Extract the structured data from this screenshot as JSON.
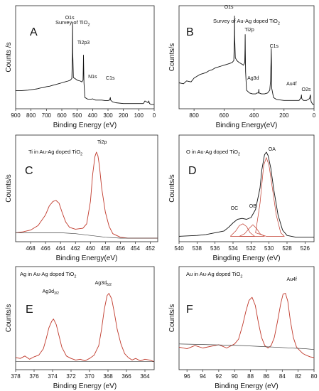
{
  "chart_data": [
    {
      "panel": "A",
      "type": "line",
      "inset_label": "Survey of  TiO",
      "inset_sub": "2",
      "xlabel": "Binding Energy (eV)",
      "ylabel": "Counts /s",
      "xlim": [
        900,
        0
      ],
      "ticks": [
        "900",
        "800",
        "700",
        "600",
        "500",
        "400",
        "300",
        "200",
        "100",
        "0"
      ],
      "annotations": [
        {
          "text": "O1s",
          "x": 530
        },
        {
          "text": "Ti2p3",
          "x": 459
        },
        {
          "text": "N1s",
          "x": 400
        },
        {
          "text": "C1s",
          "x": 285
        }
      ],
      "series": [
        {
          "color": "#111111",
          "x": [
            900,
            860,
            820,
            780,
            760,
            740,
            720,
            700,
            680,
            660,
            640,
            620,
            600,
            580,
            560,
            545,
            535,
            531,
            530,
            529,
            525,
            515,
            500,
            480,
            470,
            462,
            460,
            459,
            458,
            456,
            450,
            430,
            410,
            400,
            395,
            380,
            360,
            340,
            320,
            300,
            290,
            285,
            283,
            270,
            250,
            200,
            150,
            100,
            70,
            60,
            50,
            40,
            35,
            30,
            20,
            10,
            0
          ],
          "y": [
            0.21,
            0.21,
            0.215,
            0.225,
            0.23,
            0.24,
            0.245,
            0.255,
            0.26,
            0.27,
            0.28,
            0.29,
            0.3,
            0.31,
            0.32,
            0.33,
            0.35,
            0.6,
            1.0,
            0.65,
            0.36,
            0.35,
            0.33,
            0.32,
            0.31,
            0.33,
            0.5,
            0.62,
            0.48,
            0.3,
            0.13,
            0.11,
            0.11,
            0.115,
            0.11,
            0.1,
            0.1,
            0.1,
            0.095,
            0.095,
            0.1,
            0.13,
            0.1,
            0.08,
            0.07,
            0.06,
            0.06,
            0.06,
            0.06,
            0.09,
            0.08,
            0.07,
            0.09,
            0.06,
            0.05,
            0.05,
            0.05
          ]
        }
      ]
    },
    {
      "panel": "B",
      "type": "line",
      "inset_label": "Survey of Au-Ag doped TiO",
      "inset_sub": "2",
      "xlabel": "Binding Energy(eV)",
      "ylabel": "Counts/s",
      "xlim": [
        900,
        0
      ],
      "ticks": [
        "800",
        "600",
        "400",
        "200",
        "0"
      ],
      "annotations": [
        {
          "text": "O1s",
          "x": 530
        },
        {
          "text": "Ti2p",
          "x": 459
        },
        {
          "text": "C1s",
          "x": 285
        },
        {
          "text": "Ag3d",
          "x": 368
        },
        {
          "text": "Au4f",
          "x": 84
        },
        {
          "text": "O2s",
          "x": 24
        }
      ],
      "series": [
        {
          "color": "#111111",
          "x": [
            900,
            870,
            850,
            820,
            800,
            780,
            760,
            740,
            720,
            700,
            680,
            660,
            640,
            620,
            600,
            580,
            560,
            545,
            535,
            531,
            530,
            529,
            525,
            515,
            500,
            480,
            470,
            462,
            460,
            459,
            458,
            456,
            450,
            430,
            410,
            400,
            390,
            380,
            370,
            368,
            366,
            350,
            330,
            310,
            295,
            290,
            286,
            285,
            284,
            282,
            270,
            250,
            200,
            150,
            100,
            86,
            84,
            82,
            70,
            50,
            30,
            24,
            20,
            10,
            0
          ],
          "y": [
            0.28,
            0.27,
            0.3,
            0.29,
            0.33,
            0.35,
            0.37,
            0.38,
            0.39,
            0.41,
            0.42,
            0.44,
            0.45,
            0.46,
            0.47,
            0.48,
            0.49,
            0.5,
            0.52,
            0.75,
            1.0,
            0.78,
            0.55,
            0.52,
            0.5,
            0.48,
            0.47,
            0.5,
            0.65,
            0.8,
            0.62,
            0.4,
            0.2,
            0.17,
            0.16,
            0.16,
            0.16,
            0.17,
            0.17,
            0.21,
            0.17,
            0.16,
            0.16,
            0.17,
            0.2,
            0.3,
            0.55,
            0.65,
            0.55,
            0.22,
            0.12,
            0.1,
            0.09,
            0.09,
            0.09,
            0.12,
            0.15,
            0.11,
            0.09,
            0.09,
            0.11,
            0.15,
            0.08,
            0.05,
            0.05
          ]
        }
      ]
    },
    {
      "panel": "C",
      "type": "line",
      "inset_label": "Ti in Au-Ag doped TiO",
      "inset_sub": "2",
      "xlabel": "Binding Energy(eV)",
      "ylabel": "Counts/s",
      "xlim": [
        470,
        451
      ],
      "ticks": [
        "468",
        "466",
        "464",
        "462",
        "460",
        "458",
        "456",
        "454",
        "452"
      ],
      "annotations": [
        {
          "text": "Ti2p",
          "x": 459.2
        }
      ],
      "series": [
        {
          "color": "#c0392b",
          "x": [
            470,
            469,
            468,
            467,
            466,
            465.5,
            465,
            464.6,
            464.2,
            463.8,
            463.3,
            462.8,
            462,
            461,
            460.5,
            460,
            459.7,
            459.4,
            459.2,
            459,
            458.8,
            458.5,
            458,
            457.5,
            457,
            456,
            455,
            454,
            453,
            452,
            451
          ],
          "y": [
            0.1,
            0.11,
            0.13,
            0.18,
            0.3,
            0.4,
            0.45,
            0.46,
            0.43,
            0.33,
            0.22,
            0.16,
            0.14,
            0.15,
            0.2,
            0.45,
            0.75,
            0.95,
            1.0,
            0.96,
            0.85,
            0.6,
            0.33,
            0.17,
            0.09,
            0.05,
            0.04,
            0.04,
            0.04,
            0.04,
            0.04
          ]
        },
        {
          "color": "#444444",
          "x": [
            470,
            468,
            466,
            464,
            462,
            460,
            458,
            456,
            454,
            452,
            451
          ],
          "y": [
            0.1,
            0.1,
            0.1,
            0.1,
            0.09,
            0.07,
            0.05,
            0.04,
            0.04,
            0.04,
            0.04
          ]
        }
      ]
    },
    {
      "panel": "D",
      "type": "line",
      "inset_label": "O in Au-Ag doped TiO",
      "inset_sub": "2",
      "xlabel": "Bingding Energy (eV)",
      "ylabel": "Counts/s",
      "xlim": [
        540,
        525
      ],
      "ticks": [
        "540",
        "538",
        "536",
        "534",
        "532",
        "530",
        "528",
        "526"
      ],
      "annotations": [
        {
          "text": "OC",
          "x": 532.9
        },
        {
          "text": "OB",
          "x": 531.8
        },
        {
          "text": "OA",
          "x": 530.3
        }
      ],
      "series": [
        {
          "color": "#111111",
          "x": [
            540,
            538,
            537,
            536,
            535,
            534.5,
            534,
            533.5,
            533,
            532.5,
            532,
            531.5,
            531,
            530.8,
            530.5,
            530.3,
            530.1,
            529.8,
            529.5,
            529,
            528.5,
            528,
            527,
            526,
            525
          ],
          "y": [
            0.06,
            0.07,
            0.08,
            0.1,
            0.12,
            0.16,
            0.21,
            0.25,
            0.26,
            0.25,
            0.27,
            0.36,
            0.6,
            0.8,
            0.97,
            1.0,
            0.96,
            0.82,
            0.6,
            0.3,
            0.13,
            0.07,
            0.05,
            0.05,
            0.05
          ]
        },
        {
          "color": "#c0392b",
          "x": [
            530.3,
            531.5,
            531,
            530.6,
            530.3,
            530,
            529.6,
            529.2,
            528.7,
            528.3,
            530.3
          ],
          "y": [
            0.06,
            0.1,
            0.43,
            0.85,
            0.94,
            0.85,
            0.58,
            0.3,
            0.1,
            0.06,
            0.06
          ]
        },
        {
          "color": "#c0392b",
          "x": [
            534.3,
            533.7,
            533.3,
            532.9,
            532.5,
            532.1,
            531.6,
            534.3
          ],
          "y": [
            0.06,
            0.12,
            0.18,
            0.2,
            0.17,
            0.1,
            0.06,
            0.06
          ]
        },
        {
          "color": "#c0392b",
          "x": [
            533.3,
            532.7,
            532.2,
            531.8,
            531.4,
            531,
            530.5,
            533.3
          ],
          "y": [
            0.06,
            0.09,
            0.15,
            0.19,
            0.15,
            0.09,
            0.06,
            0.06
          ]
        }
      ]
    },
    {
      "panel": "E",
      "type": "line",
      "inset_label": "Ag in Au-Ag doped TiO",
      "inset_sub": "2",
      "xlabel": "Binding Energy (eV)",
      "ylabel": "Counts/s",
      "xlim": [
        378,
        363
      ],
      "ticks": [
        "378",
        "376",
        "374",
        "372",
        "370",
        "368",
        "366",
        "364"
      ],
      "annotations": [
        {
          "text": "Ag3d",
          "sub": "3/2",
          "x": 373.9
        },
        {
          "text": "Ag3d",
          "sub": "5/2",
          "x": 367.9
        }
      ],
      "series": [
        {
          "color": "#c0392b",
          "x": [
            378,
            377.5,
            377,
            376.5,
            376,
            375.5,
            375,
            374.7,
            374.4,
            374.1,
            373.9,
            373.6,
            373.3,
            373,
            372.5,
            372,
            371.5,
            371,
            370.5,
            370,
            369.5,
            369,
            368.7,
            368.4,
            368.1,
            367.9,
            367.6,
            367.3,
            367,
            366.6,
            366.2,
            365.8,
            365.4,
            365,
            364.5,
            364,
            363.5,
            363
          ],
          "y": [
            0.15,
            0.14,
            0.17,
            0.13,
            0.16,
            0.18,
            0.26,
            0.38,
            0.52,
            0.6,
            0.63,
            0.56,
            0.42,
            0.28,
            0.17,
            0.14,
            0.12,
            0.13,
            0.11,
            0.14,
            0.18,
            0.3,
            0.5,
            0.75,
            0.92,
            0.95,
            0.88,
            0.7,
            0.5,
            0.32,
            0.2,
            0.15,
            0.12,
            0.14,
            0.11,
            0.13,
            0.12,
            0.1
          ]
        },
        {
          "color": "#444444",
          "x": [
            378,
            363
          ],
          "y": [
            0.1,
            0.1
          ]
        }
      ]
    },
    {
      "panel": "F",
      "type": "line",
      "inset_label": "Au in Au-Ag doped TiO",
      "inset_sub": "2",
      "xlabel": "Binding Energy (eV)",
      "ylabel": "Counts/s",
      "xlim": [
        97,
        80
      ],
      "ticks": [
        "96",
        "94",
        "92",
        "90",
        "88",
        "86",
        "84",
        "82",
        "80"
      ],
      "annotations": [
        {
          "text": "Au4f",
          "x": 83.7
        }
      ],
      "series": [
        {
          "color": "#c0392b",
          "x": [
            97,
            96,
            95,
            94,
            93,
            92,
            91,
            90,
            89.5,
            89,
            88.6,
            88.2,
            87.8,
            87.4,
            87,
            86.6,
            86.2,
            85.8,
            85.4,
            85,
            84.6,
            84.2,
            83.9,
            83.6,
            83.3,
            83,
            82.6,
            82.2,
            81.8,
            81.4,
            81,
            80.5,
            80
          ],
          "y": [
            0.28,
            0.26,
            0.3,
            0.27,
            0.29,
            0.31,
            0.27,
            0.32,
            0.38,
            0.55,
            0.72,
            0.86,
            0.9,
            0.8,
            0.58,
            0.4,
            0.3,
            0.27,
            0.3,
            0.4,
            0.6,
            0.82,
            0.94,
            0.95,
            0.85,
            0.62,
            0.4,
            0.28,
            0.24,
            0.2,
            0.18,
            0.16,
            0.15
          ]
        },
        {
          "color": "#444444",
          "x": [
            97,
            93,
            89,
            85,
            81,
            80
          ],
          "y": [
            0.32,
            0.31,
            0.3,
            0.28,
            0.26,
            0.25
          ]
        }
      ]
    }
  ]
}
